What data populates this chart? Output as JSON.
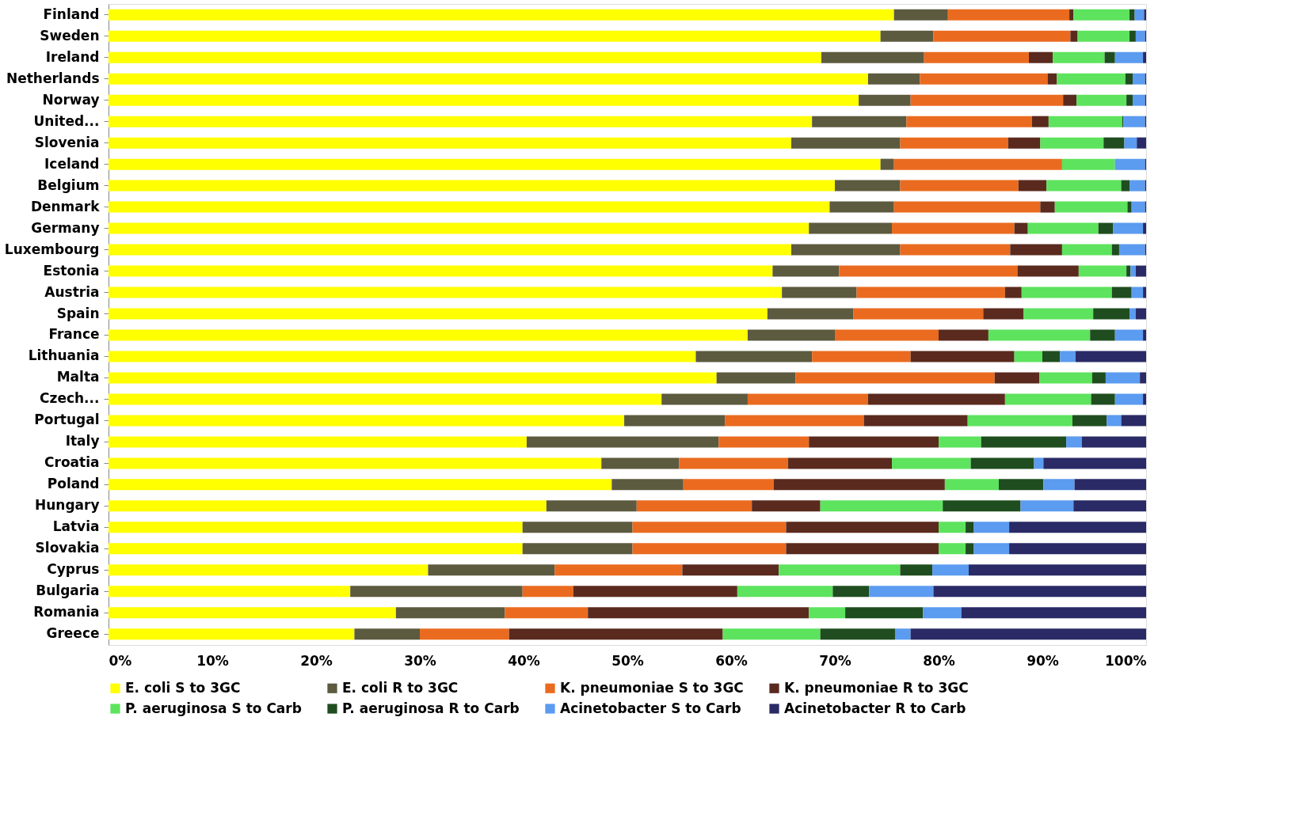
{
  "chart_data": {
    "type": "bar",
    "orientation": "horizontal",
    "stacked": true,
    "grid": false,
    "legend": "bottom",
    "categories": [
      "Finland",
      "Sweden",
      "Ireland",
      "Netherlands",
      "Norway",
      "United...",
      "Slovenia",
      "Iceland",
      "Belgium",
      "Denmark",
      "Germany",
      "Luxembourg",
      "Estonia",
      "Austria",
      "Spain",
      "France",
      "Lithuania",
      "Malta",
      "Czech...",
      "Portugal",
      "Italy",
      "Croatia",
      "Poland",
      "Hungary",
      "Latvia",
      "Slovakia",
      "Cyprus",
      "Bulgaria",
      "Romania",
      "Greece"
    ],
    "xlim": [
      0,
      100
    ],
    "xticks": [
      {
        "value": 0,
        "label": "0%"
      },
      {
        "value": 10,
        "label": "10%"
      },
      {
        "value": 20,
        "label": "20%"
      },
      {
        "value": 30,
        "label": "30%"
      },
      {
        "value": 40,
        "label": "40%"
      },
      {
        "value": 50,
        "label": "50%"
      },
      {
        "value": 60,
        "label": "60%"
      },
      {
        "value": 70,
        "label": "70%"
      },
      {
        "value": 80,
        "label": "80%"
      },
      {
        "value": 90,
        "label": "90%"
      },
      {
        "value": 100,
        "label": "100%"
      }
    ],
    "series": [
      {
        "name": "E. coli S to 3GC",
        "color": "#ffff00",
        "values": [
          75.7,
          74.4,
          68.7,
          73.2,
          72.3,
          67.8,
          65.8,
          74.4,
          70.0,
          69.5,
          67.5,
          65.8,
          64.0,
          64.9,
          63.5,
          61.6,
          56.6,
          58.6,
          53.3,
          49.7,
          40.3,
          47.5,
          48.5,
          42.2,
          39.9,
          39.9,
          30.8,
          23.3,
          27.7,
          23.7
        ]
      },
      {
        "name": "E. coli R to 3GC",
        "color": "#5c5a3f",
        "values": [
          5.2,
          5.1,
          9.9,
          5.0,
          5.0,
          9.1,
          10.5,
          1.3,
          6.3,
          6.2,
          8.0,
          10.5,
          6.4,
          7.2,
          8.3,
          8.4,
          11.2,
          7.6,
          8.3,
          9.7,
          18.5,
          7.5,
          6.9,
          8.7,
          10.6,
          10.6,
          12.2,
          16.6,
          10.5,
          6.3
        ]
      },
      {
        "name": "K. pneumoniae S to 3GC",
        "color": "#ea6b1f",
        "values": [
          11.7,
          13.2,
          10.1,
          12.3,
          14.7,
          12.1,
          10.4,
          16.2,
          11.4,
          14.1,
          11.8,
          10.6,
          17.2,
          14.3,
          12.5,
          10.0,
          9.5,
          19.2,
          11.6,
          13.4,
          8.7,
          10.5,
          8.7,
          11.1,
          14.8,
          14.8,
          12.3,
          4.9,
          8.0,
          8.6
        ]
      },
      {
        "name": "K. pneumoniae R to 3GC",
        "color": "#5a2a1e",
        "values": [
          0.4,
          0.7,
          2.3,
          0.9,
          1.3,
          1.6,
          3.1,
          0,
          2.7,
          1.4,
          1.3,
          5.0,
          5.9,
          1.6,
          3.9,
          4.8,
          10.0,
          4.3,
          13.2,
          10.0,
          12.5,
          10.0,
          16.5,
          6.6,
          14.7,
          14.7,
          9.3,
          15.8,
          21.3,
          20.6
        ]
      },
      {
        "name": "P. aeruginosa S to Carb",
        "color": "#5de35d",
        "values": [
          5.4,
          5.0,
          5.0,
          6.6,
          4.8,
          7.1,
          6.1,
          5.1,
          7.2,
          7.0,
          6.8,
          4.8,
          4.6,
          8.7,
          6.7,
          9.8,
          2.7,
          5.1,
          8.3,
          10.1,
          4.1,
          7.6,
          5.2,
          11.8,
          2.6,
          2.6,
          11.7,
          9.2,
          3.5,
          9.4
        ]
      },
      {
        "name": "P. aeruginosa R to Carb",
        "color": "#1f4d1f",
        "values": [
          0.5,
          0.6,
          1.0,
          0.7,
          0.6,
          0.1,
          2.0,
          0,
          0.8,
          0.4,
          1.4,
          0.7,
          0.4,
          1.9,
          3.5,
          2.4,
          1.7,
          1.3,
          2.3,
          3.3,
          8.2,
          6.1,
          4.3,
          7.5,
          0.8,
          0.8,
          3.1,
          3.5,
          7.5,
          7.2
        ]
      },
      {
        "name": "Acinetobacter S to Carb",
        "color": "#5b9bf0",
        "values": [
          0.9,
          0.9,
          2.7,
          1.2,
          1.2,
          2.1,
          1.2,
          2.9,
          1.5,
          1.3,
          2.9,
          2.5,
          0.5,
          1.1,
          0.6,
          2.7,
          1.5,
          3.3,
          2.7,
          1.4,
          1.5,
          0.9,
          3.0,
          5.1,
          3.4,
          3.4,
          3.5,
          6.2,
          3.7,
          1.5
        ]
      },
      {
        "name": "Acinetobacter R to Carb",
        "color": "#2a2a66",
        "values": [
          0.2,
          0.1,
          0.3,
          0.1,
          0.1,
          0.1,
          0.9,
          0.1,
          0.1,
          0.1,
          0.3,
          0.1,
          1.0,
          0.3,
          1.0,
          0.3,
          6.8,
          0.6,
          0.3,
          2.4,
          6.2,
          9.9,
          6.9,
          7.0,
          13.2,
          13.2,
          17.1,
          20.5,
          17.8,
          22.7
        ]
      }
    ]
  }
}
